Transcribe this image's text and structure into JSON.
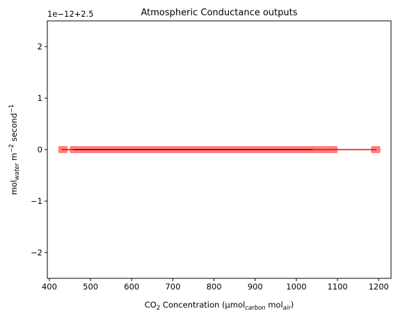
{
  "chart_data": {
    "type": "scatter",
    "title": "Atmospheric Conductance outputs",
    "xlabel": {
      "prefix": "CO",
      "sub1": "2",
      "mid": " Concentration (µmol",
      "sub2": "carbon",
      "mid2": " mol",
      "sub3": "air",
      "suffix": ")"
    },
    "ylabel": {
      "prefix": "mol",
      "sub1": "water",
      "mid": " m",
      "sup1": "−2",
      "mid2": " second",
      "sup2": "−1"
    },
    "offset_label": "1e−12+2.5",
    "xlim": [
      395,
      1230
    ],
    "ylim": [
      -2.5,
      2.5
    ],
    "xticks": [
      400,
      500,
      600,
      700,
      800,
      900,
      1000,
      1100,
      1200
    ],
    "yticks": [
      -2,
      -1,
      0,
      1,
      2
    ],
    "grid": false,
    "colors": {
      "green": "#90ee90",
      "pink": "#ff8080",
      "line": "#ff0000",
      "inner": "#8b0000"
    },
    "green_points_x": [
      430,
      435,
      460,
      470,
      480,
      490,
      500,
      520,
      540,
      560,
      580,
      600,
      620,
      640,
      660,
      680,
      700,
      720,
      740,
      760,
      780,
      800,
      820,
      840,
      860,
      880,
      900,
      920,
      940,
      960,
      980,
      1000,
      1020,
      1040,
      1050,
      1060,
      1070,
      1080,
      1085,
      1090,
      1190,
      1195
    ],
    "pink_clusters": [
      {
        "x0": 430,
        "x1": 436
      },
      {
        "x0": 458,
        "x1": 1092
      },
      {
        "x0": 1190,
        "x1": 1196
      }
    ],
    "line_x": [
      430,
      1195
    ],
    "inner_line_x": [
      458,
      1040
    ]
  }
}
